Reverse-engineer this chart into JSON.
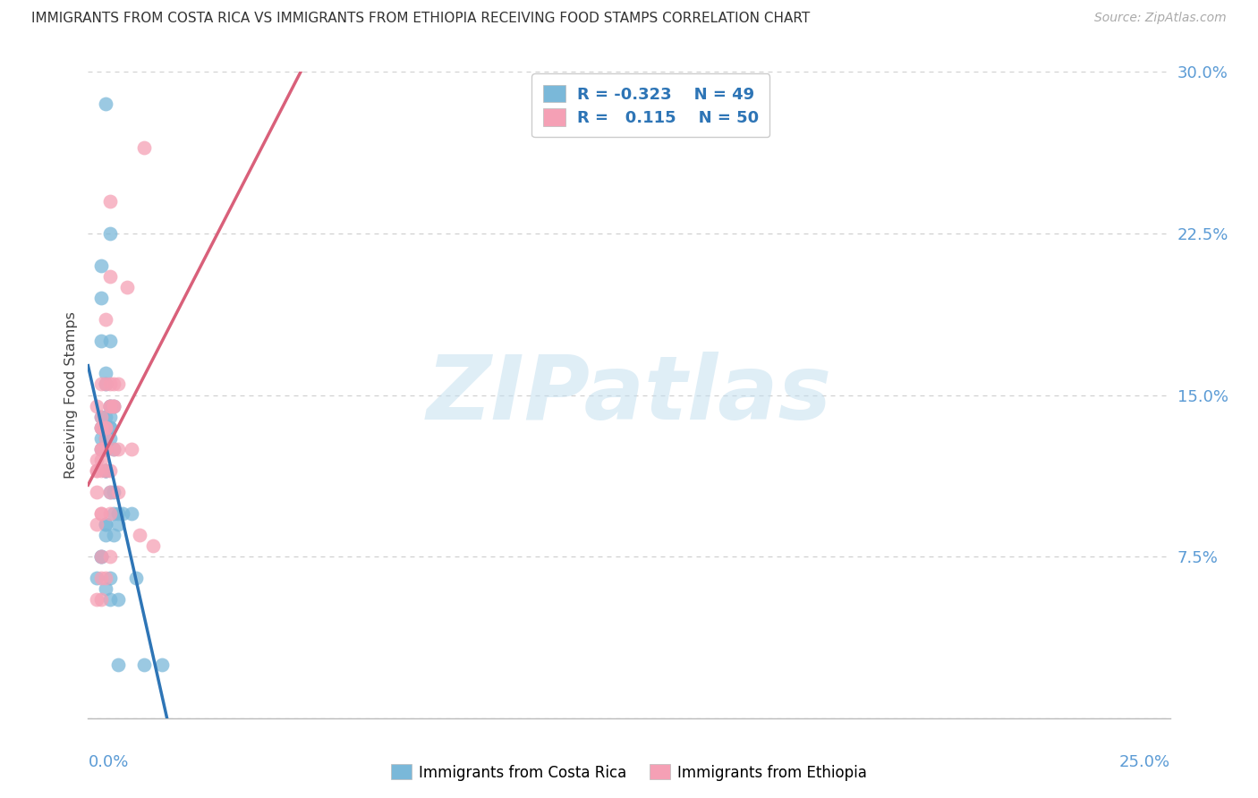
{
  "title": "IMMIGRANTS FROM COSTA RICA VS IMMIGRANTS FROM ETHIOPIA RECEIVING FOOD STAMPS CORRELATION CHART",
  "source": "Source: ZipAtlas.com",
  "ylabel": "Receiving Food Stamps",
  "xlim": [
    0.0,
    0.25
  ],
  "ylim": [
    0.0,
    0.3
  ],
  "yticks": [
    0.0,
    0.075,
    0.15,
    0.225,
    0.3
  ],
  "ytick_labels": [
    "",
    "7.5%",
    "15.0%",
    "22.5%",
    "30.0%"
  ],
  "watermark": "ZIPatlas",
  "legend_label1": "Immigrants from Costa Rica",
  "legend_label2": "Immigrants from Ethiopia",
  "color_blue": "#7ab8d9",
  "color_pink": "#f5a0b5",
  "color_line_blue": "#2e75b6",
  "color_line_pink": "#d9607a",
  "cr_x": [
    0.003,
    0.005,
    0.003,
    0.004,
    0.003,
    0.005,
    0.004,
    0.004,
    0.003,
    0.005,
    0.004,
    0.004,
    0.003,
    0.004,
    0.004,
    0.005,
    0.006,
    0.005,
    0.004,
    0.004,
    0.003,
    0.004,
    0.004,
    0.006,
    0.004,
    0.005,
    0.007,
    0.005,
    0.004,
    0.003,
    0.005,
    0.006,
    0.004,
    0.005,
    0.003,
    0.006,
    0.007,
    0.005,
    0.005,
    0.004,
    0.007,
    0.006,
    0.007,
    0.008,
    0.011,
    0.01,
    0.013,
    0.017,
    0.003,
    0.002
  ],
  "cr_y": [
    0.135,
    0.225,
    0.21,
    0.135,
    0.195,
    0.135,
    0.14,
    0.135,
    0.14,
    0.14,
    0.285,
    0.125,
    0.13,
    0.115,
    0.16,
    0.175,
    0.145,
    0.135,
    0.09,
    0.085,
    0.175,
    0.155,
    0.13,
    0.125,
    0.06,
    0.055,
    0.055,
    0.065,
    0.115,
    0.075,
    0.105,
    0.095,
    0.09,
    0.13,
    0.125,
    0.105,
    0.095,
    0.145,
    0.145,
    0.115,
    0.025,
    0.085,
    0.09,
    0.095,
    0.065,
    0.095,
    0.025,
    0.025,
    0.075,
    0.065
  ],
  "eth_x": [
    0.002,
    0.003,
    0.003,
    0.002,
    0.004,
    0.003,
    0.002,
    0.003,
    0.005,
    0.004,
    0.005,
    0.004,
    0.005,
    0.002,
    0.003,
    0.006,
    0.004,
    0.003,
    0.002,
    0.005,
    0.003,
    0.005,
    0.004,
    0.006,
    0.004,
    0.005,
    0.007,
    0.004,
    0.003,
    0.002,
    0.005,
    0.005,
    0.003,
    0.004,
    0.003,
    0.006,
    0.007,
    0.005,
    0.004,
    0.003,
    0.012,
    0.006,
    0.007,
    0.009,
    0.013,
    0.01,
    0.003,
    0.003,
    0.002,
    0.015
  ],
  "eth_y": [
    0.12,
    0.125,
    0.135,
    0.115,
    0.13,
    0.12,
    0.115,
    0.135,
    0.24,
    0.185,
    0.145,
    0.135,
    0.205,
    0.145,
    0.14,
    0.145,
    0.125,
    0.095,
    0.09,
    0.155,
    0.155,
    0.145,
    0.135,
    0.125,
    0.115,
    0.115,
    0.125,
    0.125,
    0.115,
    0.105,
    0.095,
    0.105,
    0.125,
    0.155,
    0.095,
    0.145,
    0.105,
    0.075,
    0.065,
    0.065,
    0.085,
    0.155,
    0.155,
    0.2,
    0.265,
    0.125,
    0.055,
    0.075,
    0.055,
    0.08
  ]
}
